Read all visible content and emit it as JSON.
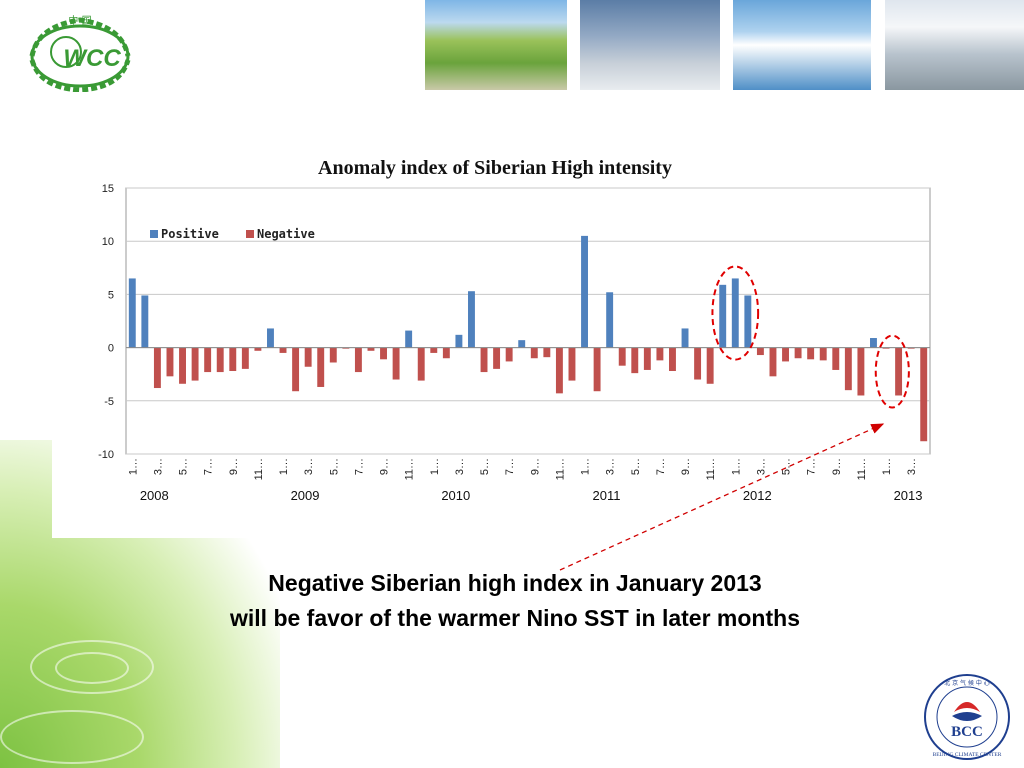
{
  "slide": {
    "caption_line1": "Negative Siberian high index in January 2013",
    "caption_line2": "will be favor of the warmer Nino SST in later months",
    "logo_left_text": "WCC",
    "logo_left_chinese": "中 国",
    "logo_right_text": "BCC",
    "logo_right_ring_text": "BEIJING CLIMATE CENTER",
    "logo_right_chinese": "北 京 气 候 中 心"
  },
  "colors": {
    "positive": "#4f81bd",
    "negative": "#c0504d",
    "highlight": "#e00000",
    "wcc_green": "#3a9a35"
  },
  "chart_data": {
    "type": "bar",
    "title": "Anomaly index of Siberian High intensity",
    "xlabel": "",
    "ylabel": "",
    "ylim": [
      -10,
      15
    ],
    "yticks": [
      "15",
      "10",
      "5",
      "0",
      "-5",
      "-10"
    ],
    "grid": true,
    "legend_position": "top-left",
    "series": [
      {
        "name": "Positive"
      },
      {
        "name": "Negative"
      }
    ],
    "x_tick_labels": [
      "1…",
      "3…",
      "5…",
      "7…",
      "9…",
      "11…",
      "1…",
      "3…",
      "5…",
      "7…",
      "9…",
      "11…",
      "1…",
      "3…",
      "5…",
      "7…",
      "9…",
      "11…",
      "1…",
      "3…",
      "5…",
      "7…",
      "9…",
      "11…",
      "1…",
      "3…",
      "5…",
      "7…",
      "9…",
      "11…",
      "1…",
      "3…"
    ],
    "year_labels": [
      "2008",
      "2009",
      "2010",
      "2011",
      "2012",
      "2013"
    ],
    "year_start_index": [
      0,
      12,
      24,
      36,
      48,
      60
    ],
    "values": [
      6.5,
      4.9,
      -3.8,
      -2.7,
      -3.4,
      -3.1,
      -2.3,
      -2.3,
      -2.2,
      -2.0,
      -0.3,
      1.8,
      -0.5,
      -4.1,
      -1.8,
      -3.7,
      -1.4,
      -0.1,
      -2.3,
      -0.3,
      -1.1,
      -3.0,
      1.6,
      -3.1,
      -0.5,
      -1.0,
      1.2,
      5.3,
      -2.3,
      -2.0,
      -1.3,
      0.7,
      -1.0,
      -0.9,
      -4.3,
      -3.1,
      10.5,
      -4.1,
      5.2,
      -1.7,
      -2.4,
      -2.1,
      -1.2,
      -2.2,
      1.8,
      -3.0,
      -3.4,
      5.9,
      6.5,
      4.9,
      -0.7,
      -2.7,
      -1.3,
      -1.0,
      -1.1,
      -1.2,
      -2.1,
      -4.0,
      -4.5,
      0.9,
      -0.1,
      -4.5,
      -0.1,
      -8.8
    ],
    "annotations": [
      {
        "shape": "ellipse",
        "target_index_range": [
          47,
          49
        ]
      },
      {
        "shape": "ellipse",
        "target_index_range": [
          60,
          61
        ]
      }
    ]
  }
}
